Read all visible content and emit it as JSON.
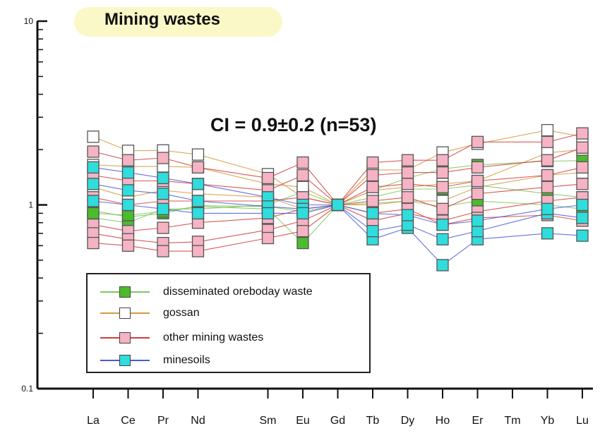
{
  "chart_data": {
    "type": "line",
    "title": "Mining wastes",
    "annotation": "CI = 0.9±0.2 (n=53)",
    "xlabel": "",
    "ylabel": "",
    "y_scale": "log",
    "ylim": [
      0.1,
      10
    ],
    "y_ticks": [
      "10",
      "1",
      "0.1"
    ],
    "categories": [
      "La",
      "Ce",
      "Pr",
      "Nd",
      "Sm",
      "Eu",
      "Gd",
      "Tb",
      "Dy",
      "Ho",
      "Er",
      "Tm",
      "Yb",
      "Lu"
    ],
    "legend_position": "bottom-left",
    "grid": false,
    "series": [
      {
        "name": "disseminated oreboday waste",
        "line_color": "#7dc65a",
        "marker_color": "#4cbb2c",
        "samples": [
          [
            0.93,
            0.86,
            0.9,
            0.99,
            0.98,
            0.92,
            1.0,
            1.1,
            1.22,
            1.22,
            1.28,
            null,
            1.15,
            1.1
          ],
          [
            0.85,
            0.8,
            0.95,
            0.95,
            1.0,
            1.18,
            1.0,
            1.2,
            1.4,
            1.57,
            1.65,
            null,
            1.73,
            1.74
          ],
          [
            0.9,
            0.88,
            0.92,
            0.98,
            0.95,
            0.62,
            1.0,
            1.02,
            1.05,
            0.98,
            1.05,
            null,
            1.0,
            0.95
          ]
        ]
      },
      {
        "name": "gossan",
        "line_color": "#d49a3c",
        "marker_color": "#ffffff",
        "samples": [
          [
            2.35,
            1.97,
            1.98,
            1.88,
            1.47,
            1.1,
            1.0,
            1.55,
            1.55,
            1.93,
            2.15,
            null,
            2.55,
            2.35
          ],
          [
            1.65,
            1.62,
            1.62,
            1.6,
            1.3,
            1.25,
            1.0,
            1.2,
            1.25,
            1.3,
            1.35,
            null,
            1.92,
            2.0
          ],
          [
            1.25,
            1.1,
            1.2,
            1.15,
            1.1,
            0.95,
            1.0,
            1.0,
            1.05,
            1.05,
            1.25,
            null,
            1.45,
            1.5
          ]
        ]
      },
      {
        "name": "other mining wastes",
        "line_color": "#d43c3c",
        "marker_color": "#f6b3c4",
        "samples": [
          [
            1.95,
            1.75,
            1.8,
            1.6,
            1.4,
            1.7,
            1.0,
            1.7,
            1.75,
            1.75,
            2.2,
            null,
            2.2,
            2.45
          ],
          [
            1.45,
            1.35,
            1.35,
            1.3,
            1.2,
            1.45,
            1.0,
            1.45,
            1.5,
            1.5,
            1.6,
            null,
            1.75,
            2.05
          ],
          [
            1.1,
            1.0,
            1.05,
            1.05,
            1.05,
            1.1,
            1.0,
            1.25,
            1.3,
            1.25,
            1.35,
            null,
            1.45,
            1.6
          ],
          [
            0.78,
            0.72,
            0.75,
            0.8,
            0.85,
            0.95,
            1.0,
            1.05,
            1.1,
            0.95,
            1.15,
            null,
            1.25,
            1.3
          ],
          [
            0.7,
            0.65,
            0.62,
            0.63,
            0.73,
            0.82,
            1.0,
            0.82,
            0.9,
            0.82,
            0.92,
            null,
            1.05,
            1.1
          ],
          [
            0.62,
            0.6,
            0.56,
            0.56,
            0.66,
            0.72,
            1.0,
            0.9,
            0.95,
            0.78,
            0.85,
            null,
            0.88,
            0.82
          ]
        ]
      },
      {
        "name": "minesoils",
        "line_color": "#4a5adc",
        "marker_color": "#30dcdc",
        "samples": [
          [
            1.6,
            1.5,
            1.4,
            1.3,
            1.1,
            1.0,
            1.0,
            0.65,
            0.75,
            0.47,
            0.65,
            null,
            0.7,
            0.68
          ],
          [
            1.3,
            1.2,
            1.15,
            1.05,
            0.98,
            0.95,
            1.0,
            0.72,
            0.78,
            0.65,
            0.72,
            null,
            0.9,
            0.85
          ],
          [
            1.05,
            1.0,
            0.95,
            0.9,
            0.9,
            0.9,
            1.0,
            0.9,
            0.88,
            0.78,
            0.82,
            null,
            0.95,
            1.0
          ]
        ]
      }
    ]
  }
}
